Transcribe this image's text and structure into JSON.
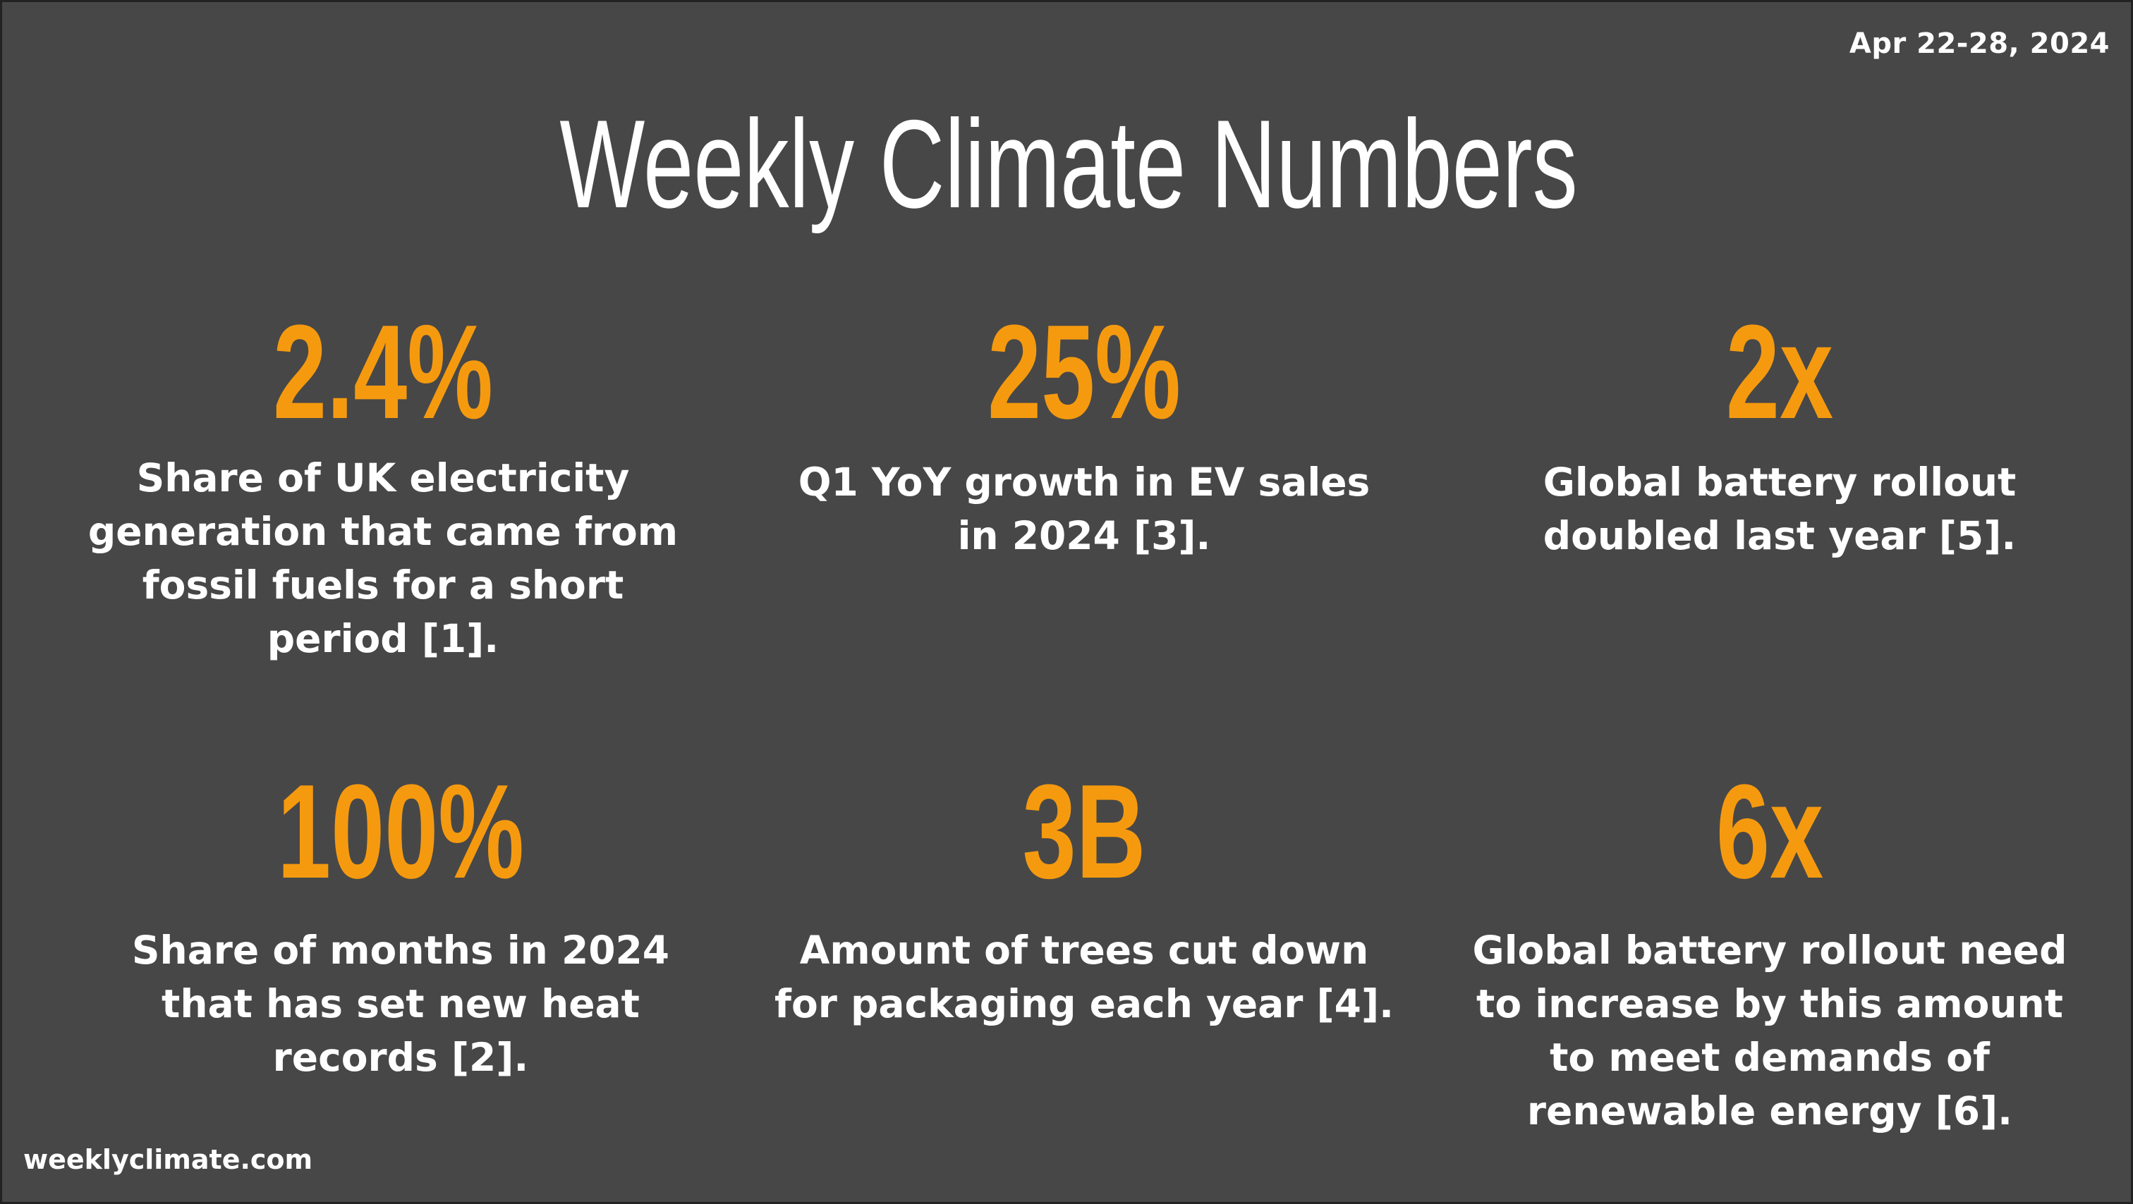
{
  "date": "Apr 22-28, 2024",
  "title": "Weekly Climate Numbers",
  "accent_color": "#f59a0f",
  "background_color": "#474747",
  "stats": [
    {
      "value": "2.4%",
      "description": "Share of UK electricity generation that came from fossil fuels for a short period [1]."
    },
    {
      "value": "25%",
      "description": "Q1 YoY growth in EV sales in 2024 [3]."
    },
    {
      "value": "2x",
      "description": "Global battery rollout doubled last year [5]."
    },
    {
      "value": "100%",
      "description": "Share of months in 2024 that has set new heat records [2]."
    },
    {
      "value": "3B",
      "description": "Amount of trees cut down for packaging each year [4]."
    },
    {
      "value": "6x",
      "description": "Global battery rollout need to increase by this amount to meet demands of renewable energy [6]."
    }
  ],
  "footer": "weeklyclimate.com"
}
